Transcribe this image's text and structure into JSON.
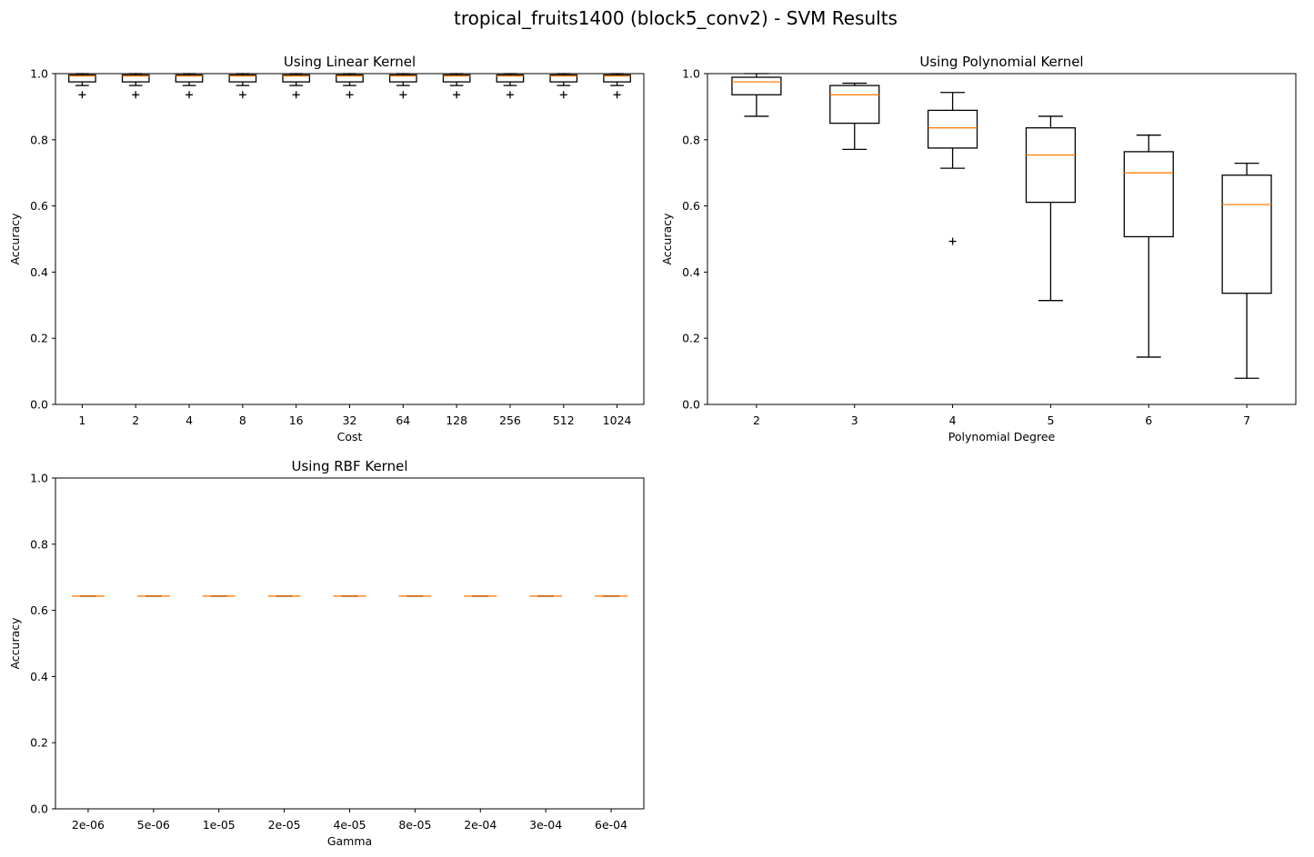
{
  "figure_title": "tropical_fruits1400 (block5_conv2) - SVM Results",
  "colors": {
    "box": "#000000",
    "median": "#ff7f0e",
    "background": "#ffffff"
  },
  "chart_data": [
    {
      "type": "box",
      "title": "Using Linear Kernel",
      "xlabel": "Cost",
      "ylabel": "Accuracy",
      "ylim": [
        0,
        1
      ],
      "yticks": [
        "0.0",
        "0.2",
        "0.4",
        "0.6",
        "0.8",
        "1.0"
      ],
      "categories": [
        "1",
        "2",
        "4",
        "8",
        "16",
        "32",
        "64",
        "128",
        "256",
        "512",
        "1024"
      ],
      "boxes": [
        {
          "whislo": 0.964,
          "q1": 0.975,
          "med": 0.993,
          "q3": 0.996,
          "whishi": 1.0,
          "fliers": [
            0.936
          ]
        },
        {
          "whislo": 0.964,
          "q1": 0.975,
          "med": 0.993,
          "q3": 0.996,
          "whishi": 1.0,
          "fliers": [
            0.936
          ]
        },
        {
          "whislo": 0.964,
          "q1": 0.975,
          "med": 0.993,
          "q3": 0.996,
          "whishi": 1.0,
          "fliers": [
            0.936
          ]
        },
        {
          "whislo": 0.964,
          "q1": 0.975,
          "med": 0.993,
          "q3": 0.996,
          "whishi": 1.0,
          "fliers": [
            0.936
          ]
        },
        {
          "whislo": 0.964,
          "q1": 0.975,
          "med": 0.993,
          "q3": 0.996,
          "whishi": 1.0,
          "fliers": [
            0.936
          ]
        },
        {
          "whislo": 0.964,
          "q1": 0.975,
          "med": 0.993,
          "q3": 0.996,
          "whishi": 1.0,
          "fliers": [
            0.936
          ]
        },
        {
          "whislo": 0.964,
          "q1": 0.975,
          "med": 0.993,
          "q3": 0.996,
          "whishi": 1.0,
          "fliers": [
            0.936
          ]
        },
        {
          "whislo": 0.964,
          "q1": 0.975,
          "med": 0.993,
          "q3": 0.996,
          "whishi": 1.0,
          "fliers": [
            0.936
          ]
        },
        {
          "whislo": 0.964,
          "q1": 0.975,
          "med": 0.993,
          "q3": 0.996,
          "whishi": 1.0,
          "fliers": [
            0.936
          ]
        },
        {
          "whislo": 0.964,
          "q1": 0.975,
          "med": 0.993,
          "q3": 0.996,
          "whishi": 1.0,
          "fliers": [
            0.936
          ]
        },
        {
          "whislo": 0.964,
          "q1": 0.975,
          "med": 0.993,
          "q3": 0.996,
          "whishi": 1.0,
          "fliers": [
            0.936
          ]
        }
      ]
    },
    {
      "type": "box",
      "title": "Using Polynomial Kernel",
      "xlabel": "Polynomial Degree",
      "ylabel": "Accuracy",
      "ylim": [
        0,
        1
      ],
      "yticks": [
        "0.0",
        "0.2",
        "0.4",
        "0.6",
        "0.8",
        "1.0"
      ],
      "categories": [
        "2",
        "3",
        "4",
        "5",
        "6",
        "7"
      ],
      "boxes": [
        {
          "whislo": 0.871,
          "q1": 0.936,
          "med": 0.975,
          "q3": 0.989,
          "whishi": 1.0,
          "fliers": []
        },
        {
          "whislo": 0.771,
          "q1": 0.85,
          "med": 0.936,
          "q3": 0.964,
          "whishi": 0.971,
          "fliers": []
        },
        {
          "whislo": 0.714,
          "q1": 0.775,
          "med": 0.836,
          "q3": 0.889,
          "whishi": 0.943,
          "fliers": [
            0.493
          ]
        },
        {
          "whislo": 0.314,
          "q1": 0.611,
          "med": 0.754,
          "q3": 0.836,
          "whishi": 0.871,
          "fliers": []
        },
        {
          "whislo": 0.143,
          "q1": 0.507,
          "med": 0.7,
          "q3": 0.764,
          "whishi": 0.814,
          "fliers": []
        },
        {
          "whislo": 0.079,
          "q1": 0.336,
          "med": 0.604,
          "q3": 0.693,
          "whishi": 0.729,
          "fliers": []
        }
      ]
    },
    {
      "type": "box",
      "title": "Using RBF Kernel",
      "xlabel": "Gamma",
      "ylabel": "Accuracy",
      "ylim": [
        0,
        1
      ],
      "yticks": [
        "0.0",
        "0.2",
        "0.4",
        "0.6",
        "0.8",
        "1.0"
      ],
      "categories": [
        "2e-06",
        "5e-06",
        "1e-05",
        "2e-05",
        "4e-05",
        "8e-05",
        "2e-04",
        "3e-04",
        "6e-04"
      ],
      "boxes": [
        {
          "whislo": 0.643,
          "q1": 0.643,
          "med": 0.643,
          "q3": 0.643,
          "whishi": 0.643,
          "fliers": []
        },
        {
          "whislo": 0.643,
          "q1": 0.643,
          "med": 0.643,
          "q3": 0.643,
          "whishi": 0.643,
          "fliers": []
        },
        {
          "whislo": 0.643,
          "q1": 0.643,
          "med": 0.643,
          "q3": 0.643,
          "whishi": 0.643,
          "fliers": []
        },
        {
          "whislo": 0.643,
          "q1": 0.643,
          "med": 0.643,
          "q3": 0.643,
          "whishi": 0.643,
          "fliers": []
        },
        {
          "whislo": 0.643,
          "q1": 0.643,
          "med": 0.643,
          "q3": 0.643,
          "whishi": 0.643,
          "fliers": []
        },
        {
          "whislo": 0.643,
          "q1": 0.643,
          "med": 0.643,
          "q3": 0.643,
          "whishi": 0.643,
          "fliers": []
        },
        {
          "whislo": 0.643,
          "q1": 0.643,
          "med": 0.643,
          "q3": 0.643,
          "whishi": 0.643,
          "fliers": []
        },
        {
          "whislo": 0.643,
          "q1": 0.643,
          "med": 0.643,
          "q3": 0.643,
          "whishi": 0.643,
          "fliers": []
        },
        {
          "whislo": 0.643,
          "q1": 0.643,
          "med": 0.643,
          "q3": 0.643,
          "whishi": 0.643,
          "fliers": []
        }
      ]
    }
  ]
}
